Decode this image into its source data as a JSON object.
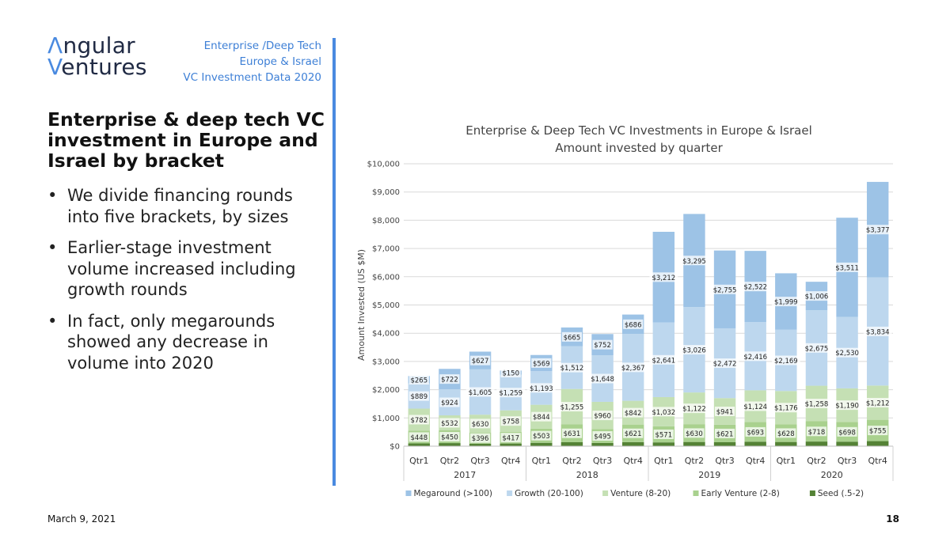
{
  "brand": {
    "logo_line1": "ngular",
    "logo_line2": "entures",
    "logo_initial1": "Λ",
    "logo_initial2": "V"
  },
  "tagline": [
    "Enterprise /Deep Tech",
    "Europe & Israel",
    "VC Investment Data 2020"
  ],
  "heading": "Enterprise & deep tech VC investment in Europe and Israel by bracket",
  "bullets": [
    "We divide financing rounds into five brackets, by sizes",
    "Earlier-stage investment volume increased including growth rounds",
    "In fact, only megarounds showed any decrease in volume into 2020"
  ],
  "footer": {
    "date": "March 9, 2021",
    "page": "18"
  },
  "colors": {
    "accent": "#4a8ae0",
    "megaround": "#9dc3e6",
    "growth": "#bdd7ee",
    "venture": "#c5e0b4",
    "early_venture": "#a9d18e",
    "seed": "#548235"
  },
  "chart_data": {
    "type": "bar",
    "stacked": true,
    "title": "Enterprise & Deep Tech VC Investments in Europe & Israel",
    "subtitle": "Amount invested by quarter",
    "ylabel": "Amount Invested (US $M)",
    "ylim": [
      0,
      10000
    ],
    "yticks": [
      0,
      1000,
      2000,
      3000,
      4000,
      5000,
      6000,
      7000,
      8000,
      9000,
      10000
    ],
    "ytick_labels": [
      "$0",
      "$1,000",
      "$2,000",
      "$3,000",
      "$4,000",
      "$5,000",
      "$6,000",
      "$7,000",
      "$8,000",
      "$9,000",
      "$10,000"
    ],
    "categories": [
      "Qtr1",
      "Qtr2",
      "Qtr3",
      "Qtr4",
      "Qtr1",
      "Qtr2",
      "Qtr3",
      "Qtr4",
      "Qtr1",
      "Qtr2",
      "Qtr3",
      "Qtr4",
      "Qtr1",
      "Qtr2",
      "Qtr3",
      "Qtr4"
    ],
    "groups": [
      {
        "label": "2017",
        "count": 4
      },
      {
        "label": "2018",
        "count": 4
      },
      {
        "label": "2019",
        "count": 4
      },
      {
        "label": "2020",
        "count": 4
      }
    ],
    "series": [
      {
        "name": "Seed (.5-2)",
        "color": "#548235",
        "values": [
          100,
          110,
          90,
          95,
          120,
          140,
          115,
          145,
          135,
          150,
          140,
          160,
          150,
          165,
          160,
          180
        ],
        "labels": []
      },
      {
        "name": "Early Venture (2-8)",
        "color": "#a9d18e",
        "values": [
          448,
          450,
          396,
          417,
          503,
          631,
          495,
          621,
          571,
          630,
          621,
          693,
          628,
          718,
          698,
          755
        ],
        "labels": [
          "$448",
          "$450",
          "$396",
          "$417",
          "$503",
          "$631",
          "$495",
          "$621",
          "$571",
          "$630",
          "$621",
          "$693",
          "$628",
          "$718",
          "$698",
          "$755"
        ]
      },
      {
        "name": "Venture (8-20)",
        "color": "#c5e0b4",
        "values": [
          782,
          532,
          630,
          758,
          844,
          1255,
          960,
          842,
          1032,
          1122,
          941,
          1124,
          1176,
          1258,
          1190,
          1212
        ],
        "labels": [
          "$782",
          "$532",
          "$630",
          "$758",
          "$844",
          "$1,255",
          "$960",
          "$842",
          "$1,032",
          "$1,122",
          "$941",
          "$1,124",
          "$1,176",
          "$1,258",
          "$1,190",
          "$1,212"
        ]
      },
      {
        "name": "Growth (20-100)",
        "color": "#bdd7ee",
        "values": [
          889,
          924,
          1605,
          1259,
          1193,
          1512,
          1648,
          2367,
          2641,
          3026,
          2472,
          2416,
          2169,
          2675,
          2530,
          3834
        ],
        "labels": [
          "$889",
          "$924",
          "$1,605",
          "$1,259",
          "$1,193",
          "$1,512",
          "$1,648",
          "$2,367",
          "$2,641",
          "$3,026",
          "$2,472",
          "$2,416",
          "$2,169",
          "$2,675",
          "$2,530",
          "$3,834"
        ]
      },
      {
        "name": "Megaround (>100)",
        "color": "#9dc3e6",
        "values": [
          265,
          722,
          627,
          150,
          569,
          665,
          752,
          686,
          3212,
          3295,
          2755,
          2522,
          1999,
          1006,
          3511,
          3377
        ],
        "labels": [
          "$265",
          "$722",
          "$627",
          "$150",
          "$569",
          "$665",
          "$752",
          "$686",
          "$3,212",
          "$3,295",
          "$2,755",
          "$2,522",
          "$1,999",
          "$1,006",
          "$3,511",
          "$3,377"
        ]
      }
    ],
    "legend_order": [
      "Megaround (>100)",
      "Growth (20-100)",
      "Venture (8-20)",
      "Early Venture (2-8)",
      "Seed (.5-2)"
    ],
    "legend_position": "bottom",
    "grid": true
  }
}
